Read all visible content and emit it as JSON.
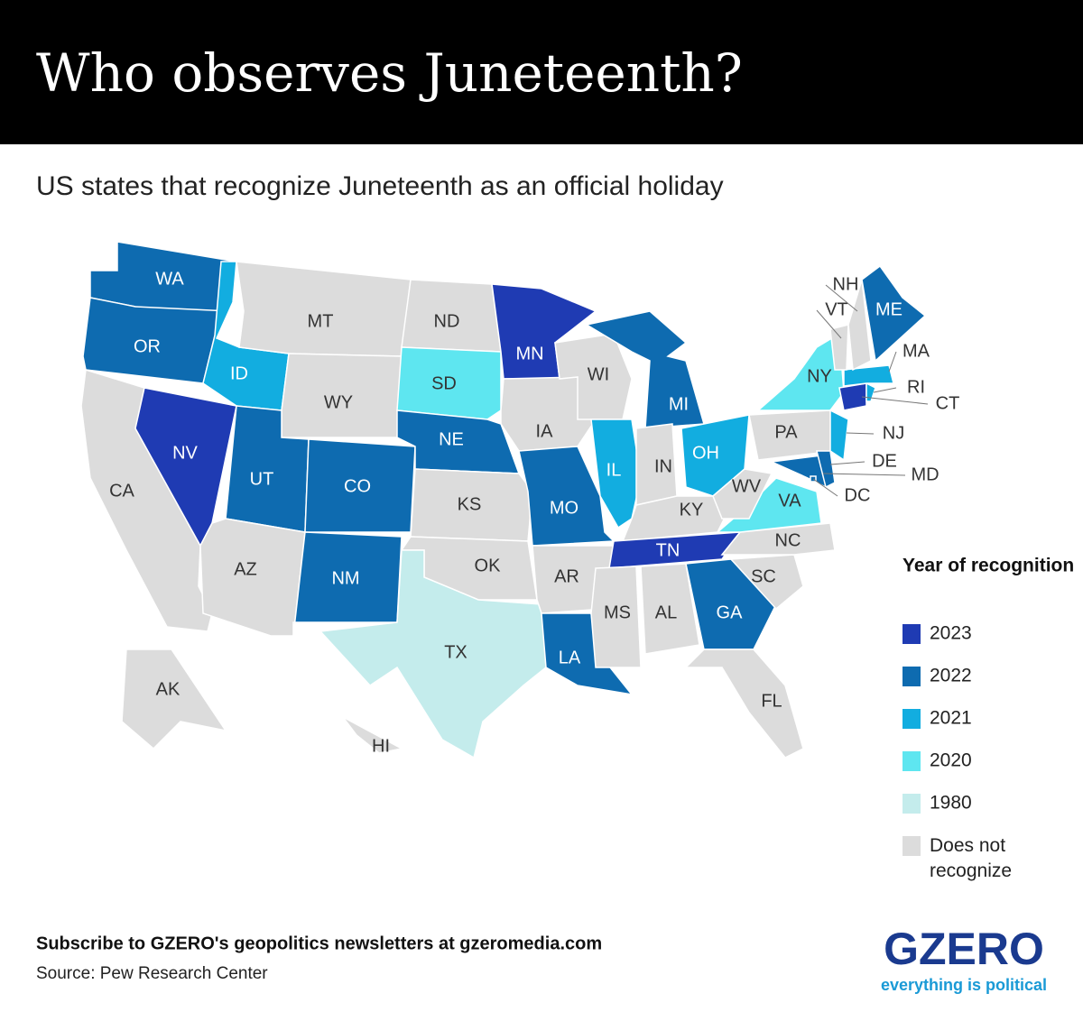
{
  "header": {
    "title": "Who observes Juneteenth?"
  },
  "subtitle": "US states that recognize Juneteenth as an official holiday",
  "legend": {
    "title": "Year of recognition",
    "items": [
      {
        "label": "2023",
        "color": "#1f3bb3",
        "text_color": "#ffffff"
      },
      {
        "label": "2022",
        "color": "#0e6bb0",
        "text_color": "#ffffff"
      },
      {
        "label": "2021",
        "color": "#12ade0",
        "text_color": "#ffffff"
      },
      {
        "label": "2020",
        "color": "#5ee6f0",
        "text_color": "#333333"
      },
      {
        "label": "1980",
        "color": "#c4ecec",
        "text_color": "#333333"
      },
      {
        "label": "Does not recognize",
        "color": "#dcdcdc",
        "text_color": "#333333"
      }
    ]
  },
  "states": [
    {
      "abbr": "WA",
      "group": "2022"
    },
    {
      "abbr": "OR",
      "group": "2022"
    },
    {
      "abbr": "CA",
      "group": "Does not recognize"
    },
    {
      "abbr": "NV",
      "group": "2023"
    },
    {
      "abbr": "ID",
      "group": "2021"
    },
    {
      "abbr": "MT",
      "group": "Does not recognize"
    },
    {
      "abbr": "WY",
      "group": "Does not recognize"
    },
    {
      "abbr": "UT",
      "group": "2022"
    },
    {
      "abbr": "AZ",
      "group": "Does not recognize"
    },
    {
      "abbr": "CO",
      "group": "2022"
    },
    {
      "abbr": "NM",
      "group": "2022"
    },
    {
      "abbr": "ND",
      "group": "Does not recognize"
    },
    {
      "abbr": "SD",
      "group": "2020"
    },
    {
      "abbr": "NE",
      "group": "2022"
    },
    {
      "abbr": "KS",
      "group": "Does not recognize"
    },
    {
      "abbr": "OK",
      "group": "Does not recognize"
    },
    {
      "abbr": "TX",
      "group": "1980"
    },
    {
      "abbr": "MN",
      "group": "2023"
    },
    {
      "abbr": "IA",
      "group": "Does not recognize"
    },
    {
      "abbr": "MO",
      "group": "2022"
    },
    {
      "abbr": "AR",
      "group": "Does not recognize"
    },
    {
      "abbr": "LA",
      "group": "2022"
    },
    {
      "abbr": "WI",
      "group": "Does not recognize"
    },
    {
      "abbr": "IL",
      "group": "2021"
    },
    {
      "abbr": "MI",
      "group": "2022"
    },
    {
      "abbr": "IN",
      "group": "Does not recognize"
    },
    {
      "abbr": "OH",
      "group": "2021"
    },
    {
      "abbr": "KY",
      "group": "Does not recognize"
    },
    {
      "abbr": "TN",
      "group": "2023"
    },
    {
      "abbr": "MS",
      "group": "Does not recognize"
    },
    {
      "abbr": "AL",
      "group": "Does not recognize"
    },
    {
      "abbr": "GA",
      "group": "2022"
    },
    {
      "abbr": "FL",
      "group": "Does not recognize"
    },
    {
      "abbr": "SC",
      "group": "Does not recognize"
    },
    {
      "abbr": "NC",
      "group": "Does not recognize"
    },
    {
      "abbr": "VA",
      "group": "2020"
    },
    {
      "abbr": "WV",
      "group": "Does not recognize"
    },
    {
      "abbr": "PA",
      "group": "Does not recognize"
    },
    {
      "abbr": "NY",
      "group": "2020"
    },
    {
      "abbr": "MD",
      "group": "2022"
    },
    {
      "abbr": "DE",
      "group": "2022"
    },
    {
      "abbr": "NJ",
      "group": "2021"
    },
    {
      "abbr": "CT",
      "group": "2023"
    },
    {
      "abbr": "RI",
      "group": "2021"
    },
    {
      "abbr": "MA",
      "group": "2021"
    },
    {
      "abbr": "VT",
      "group": "Does not recognize"
    },
    {
      "abbr": "NH",
      "group": "Does not recognize"
    },
    {
      "abbr": "ME",
      "group": "2022"
    },
    {
      "abbr": "AK",
      "group": "Does not recognize"
    },
    {
      "abbr": "HI",
      "group": "Does not recognize"
    },
    {
      "abbr": "DC",
      "group": "2022"
    }
  ],
  "footer": {
    "cta": "Subscribe to GZERO's geopolitics newsletters at gzeromedia.com",
    "source": "Source: Pew Research Center"
  },
  "logo": {
    "name": "GZERO",
    "tagline": "everything is political"
  }
}
